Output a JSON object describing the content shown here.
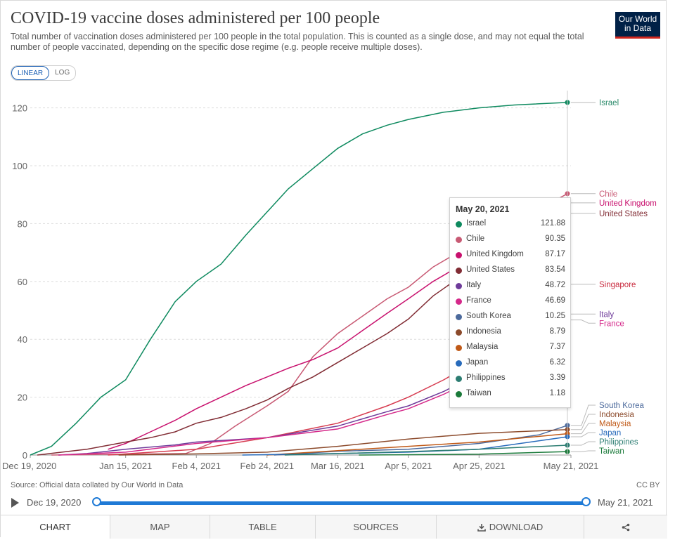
{
  "header": {
    "title": "COVID-19 vaccine doses administered per 100 people",
    "subtitle": "Total number of vaccination doses administered per 100 people in the total population. This is counted as a single dose, and may not equal the total number of people vaccinated, depending on the specific dose regime (e.g. people receive multiple doses).",
    "logo_line1": "Our World",
    "logo_line2": "in Data"
  },
  "scale_toggle": {
    "linear": "LINEAR",
    "log": "LOG",
    "selected": "LINEAR"
  },
  "tooltip": {
    "date": "May 20, 2021",
    "rows": [
      {
        "name": "Israel",
        "value": "121.88",
        "color": "#0e8a5f"
      },
      {
        "name": "Chile",
        "value": "90.35",
        "color": "#c85a74"
      },
      {
        "name": "United Kingdom",
        "value": "87.17",
        "color": "#c8116e"
      },
      {
        "name": "United States",
        "value": "83.54",
        "color": "#812c34"
      },
      {
        "name": "Italy",
        "value": "48.72",
        "color": "#6e3b9a"
      },
      {
        "name": "France",
        "value": "46.69",
        "color": "#d5298a"
      },
      {
        "name": "South Korea",
        "value": "10.25",
        "color": "#4c6a9c"
      },
      {
        "name": "Indonesia",
        "value": "8.79",
        "color": "#8c4b2c"
      },
      {
        "name": "Malaysia",
        "value": "7.37",
        "color": "#c05917"
      },
      {
        "name": "Japan",
        "value": "6.32",
        "color": "#286bbb"
      },
      {
        "name": "Philippines",
        "value": "3.39",
        "color": "#2c7d72"
      },
      {
        "name": "Taiwan",
        "value": "1.18",
        "color": "#1a7a3a"
      }
    ]
  },
  "chart_data": {
    "type": "line",
    "title": "COVID-19 vaccine doses administered per 100 people",
    "ylim": [
      0,
      125
    ],
    "yticks": [
      0,
      20,
      40,
      60,
      80,
      100,
      120
    ],
    "x_domain": [
      "Dec 19, 2020",
      "May 21, 2021"
    ],
    "xticks": [
      "Dec 19, 2020",
      "Jan 15, 2021",
      "Feb 4, 2021",
      "Feb 24, 2021",
      "Mar 16, 2021",
      "Apr 5, 2021",
      "Apr 25, 2021",
      "May 21, 2021"
    ],
    "grid": "horizontal",
    "legend": "end-of-line labels on right",
    "series": [
      {
        "name": "Israel",
        "color": "#0e8a5f",
        "label_color": "#2a8a6a",
        "points": [
          [
            "Dec 19, 2020",
            0
          ],
          [
            "Dec 25, 2020",
            3
          ],
          [
            "Jan 1, 2021",
            11
          ],
          [
            "Jan 8, 2021",
            20
          ],
          [
            "Jan 15, 2021",
            26
          ],
          [
            "Jan 22, 2021",
            40
          ],
          [
            "Jan 29, 2021",
            53
          ],
          [
            "Feb 4, 2021",
            60
          ],
          [
            "Feb 11, 2021",
            66
          ],
          [
            "Feb 18, 2021",
            76
          ],
          [
            "Feb 24, 2021",
            84
          ],
          [
            "Mar 2, 2021",
            92
          ],
          [
            "Mar 9, 2021",
            99
          ],
          [
            "Mar 16, 2021",
            106
          ],
          [
            "Mar 23, 2021",
            111
          ],
          [
            "Mar 30, 2021",
            114
          ],
          [
            "Apr 5, 2021",
            116
          ],
          [
            "Apr 15, 2021",
            118.5
          ],
          [
            "Apr 25, 2021",
            120
          ],
          [
            "May 5, 2021",
            121
          ],
          [
            "May 20, 2021",
            121.88
          ]
        ]
      },
      {
        "name": "Chile",
        "color": "#c85a74",
        "label_color": "#c85a74",
        "points": [
          [
            "Dec 25, 2020",
            0
          ],
          [
            "Feb 1, 2021",
            0.5
          ],
          [
            "Feb 8, 2021",
            4
          ],
          [
            "Feb 15, 2021",
            10
          ],
          [
            "Feb 24, 2021",
            17
          ],
          [
            "Mar 2, 2021",
            22
          ],
          [
            "Mar 9, 2021",
            34
          ],
          [
            "Mar 16, 2021",
            42
          ],
          [
            "Mar 23, 2021",
            48
          ],
          [
            "Mar 30, 2021",
            54
          ],
          [
            "Apr 5, 2021",
            58
          ],
          [
            "Apr 12, 2021",
            65
          ],
          [
            "Apr 19, 2021",
            70
          ],
          [
            "Apr 25, 2021",
            74
          ],
          [
            "May 2, 2021",
            78
          ],
          [
            "May 9, 2021",
            83
          ],
          [
            "May 20, 2021",
            90.35
          ]
        ]
      },
      {
        "name": "United Kingdom",
        "color": "#c8116e",
        "label_color": "#c8116e",
        "points": [
          [
            "Jan 10, 2021",
            2
          ],
          [
            "Jan 15, 2021",
            4
          ],
          [
            "Jan 22, 2021",
            8
          ],
          [
            "Jan 29, 2021",
            12
          ],
          [
            "Feb 4, 2021",
            16
          ],
          [
            "Feb 11, 2021",
            20
          ],
          [
            "Feb 18, 2021",
            24
          ],
          [
            "Feb 24, 2021",
            27
          ],
          [
            "Mar 2, 2021",
            30
          ],
          [
            "Mar 9, 2021",
            33
          ],
          [
            "Mar 16, 2021",
            37
          ],
          [
            "Mar 23, 2021",
            43
          ],
          [
            "Mar 30, 2021",
            49
          ],
          [
            "Apr 5, 2021",
            54
          ],
          [
            "Apr 12, 2021",
            60
          ],
          [
            "Apr 19, 2021",
            65
          ],
          [
            "Apr 25, 2021",
            70
          ],
          [
            "May 2, 2021",
            75
          ],
          [
            "May 9, 2021",
            80
          ],
          [
            "May 20, 2021",
            87.17
          ]
        ]
      },
      {
        "name": "United States",
        "color": "#812c34",
        "label_color": "#812c34",
        "points": [
          [
            "Dec 21, 2020",
            0
          ],
          [
            "Dec 28, 2020",
            1
          ],
          [
            "Jan 4, 2021",
            2
          ],
          [
            "Jan 15, 2021",
            4.5
          ],
          [
            "Jan 22, 2021",
            6
          ],
          [
            "Jan 29, 2021",
            8
          ],
          [
            "Feb 4, 2021",
            11
          ],
          [
            "Feb 11, 2021",
            13
          ],
          [
            "Feb 18, 2021",
            16
          ],
          [
            "Feb 24, 2021",
            19
          ],
          [
            "Mar 2, 2021",
            23
          ],
          [
            "Mar 9, 2021",
            27
          ],
          [
            "Mar 16, 2021",
            32
          ],
          [
            "Mar 23, 2021",
            37
          ],
          [
            "Mar 30, 2021",
            42
          ],
          [
            "Apr 5, 2021",
            47
          ],
          [
            "Apr 12, 2021",
            55
          ],
          [
            "Apr 19, 2021",
            61
          ],
          [
            "Apr 25, 2021",
            66
          ],
          [
            "May 2, 2021",
            72
          ],
          [
            "May 9, 2021",
            77
          ],
          [
            "May 20, 2021",
            83.54
          ]
        ]
      },
      {
        "name": "Singapore",
        "color": "#d73c50",
        "label_color": "#c8283c",
        "points": [
          [
            "Jan 10, 2021",
            0
          ],
          [
            "Feb 4, 2021",
            2
          ],
          [
            "Feb 24, 2021",
            6
          ],
          [
            "Mar 16, 2021",
            11
          ],
          [
            "Mar 30, 2021",
            17
          ],
          [
            "Apr 5, 2021",
            20
          ],
          [
            "Apr 15, 2021",
            26
          ],
          [
            "Apr 25, 2021",
            33
          ],
          [
            "May 5, 2021",
            42
          ],
          [
            "May 12, 2021",
            50
          ],
          [
            "May 20, 2021",
            59
          ]
        ]
      },
      {
        "name": "Italy",
        "color": "#6e3b9a",
        "label_color": "#6e3b9a",
        "points": [
          [
            "Dec 27, 2020",
            0
          ],
          [
            "Jan 4, 2021",
            0.5
          ],
          [
            "Jan 15, 2021",
            2
          ],
          [
            "Jan 29, 2021",
            3.5
          ],
          [
            "Feb 4, 2021",
            4.5
          ],
          [
            "Feb 24, 2021",
            6
          ],
          [
            "Mar 16, 2021",
            10
          ],
          [
            "Mar 30, 2021",
            15
          ],
          [
            "Apr 5, 2021",
            17
          ],
          [
            "Apr 15, 2021",
            22
          ],
          [
            "Apr 25, 2021",
            28
          ],
          [
            "May 5, 2021",
            35
          ],
          [
            "May 12, 2021",
            41
          ],
          [
            "May 20, 2021",
            48.72
          ]
        ]
      },
      {
        "name": "France",
        "color": "#d5298a",
        "label_color": "#d5298a",
        "points": [
          [
            "Dec 27, 2020",
            0
          ],
          [
            "Jan 15, 2021",
            1
          ],
          [
            "Feb 4, 2021",
            4
          ],
          [
            "Feb 24, 2021",
            6
          ],
          [
            "Mar 16, 2021",
            9
          ],
          [
            "Mar 30, 2021",
            14
          ],
          [
            "Apr 5, 2021",
            16
          ],
          [
            "Apr 15, 2021",
            21
          ],
          [
            "Apr 25, 2021",
            27
          ],
          [
            "May 5, 2021",
            34
          ],
          [
            "May 12, 2021",
            40
          ],
          [
            "May 20, 2021",
            46.69
          ]
        ]
      },
      {
        "name": "Taiwan",
        "color": "#1a7a3a",
        "label_color": "#1a7a3a",
        "points": [
          [
            "Mar 22, 2021",
            0
          ],
          [
            "Apr 25, 2021",
            0.3
          ],
          [
            "May 20, 2021",
            1.18
          ]
        ]
      },
      {
        "name": "South Korea",
        "color": "#4c6a9c",
        "label_color": "#4c6a9c",
        "points": [
          [
            "Feb 26, 2021",
            0
          ],
          [
            "Mar 16, 2021",
            1.3
          ],
          [
            "Apr 5, 2021",
            2
          ],
          [
            "Apr 25, 2021",
            4
          ],
          [
            "May 12, 2021",
            7
          ],
          [
            "May 20, 2021",
            10.25
          ]
        ]
      },
      {
        "name": "Indonesia",
        "color": "#8c4b2c",
        "label_color": "#8c4b2c",
        "points": [
          [
            "Jan 13, 2021",
            0
          ],
          [
            "Feb 4, 2021",
            0.4
          ],
          [
            "Feb 24, 2021",
            1
          ],
          [
            "Mar 16, 2021",
            3
          ],
          [
            "Apr 5, 2021",
            5.5
          ],
          [
            "Apr 25, 2021",
            7.5
          ],
          [
            "May 20, 2021",
            8.79
          ]
        ]
      },
      {
        "name": "Malaysia",
        "color": "#c05917",
        "label_color": "#c05917",
        "points": [
          [
            "Feb 24, 2021",
            0
          ],
          [
            "Mar 16, 2021",
            1.5
          ],
          [
            "Apr 5, 2021",
            3
          ],
          [
            "Apr 25, 2021",
            4.5
          ],
          [
            "May 20, 2021",
            7.37
          ]
        ]
      },
      {
        "name": "Japan",
        "color": "#286bbb",
        "label_color": "#286bbb",
        "points": [
          [
            "Feb 17, 2021",
            0
          ],
          [
            "Mar 16, 2021",
            0.5
          ],
          [
            "Apr 5, 2021",
            1
          ],
          [
            "Apr 25, 2021",
            2
          ],
          [
            "May 20, 2021",
            6.32
          ]
        ]
      },
      {
        "name": "Philippines",
        "color": "#2c7d72",
        "label_color": "#2c7d72",
        "points": [
          [
            "Mar 1, 2021",
            0
          ],
          [
            "Mar 16, 2021",
            0.5
          ],
          [
            "Apr 5, 2021",
            1.2
          ],
          [
            "Apr 25, 2021",
            2
          ],
          [
            "May 20, 2021",
            3.39
          ]
        ]
      }
    ]
  },
  "footer": {
    "source": "Source: Official data collated by Our World in Data",
    "license": "CC BY",
    "timeline_start": "Dec 19, 2020",
    "timeline_end": "May 21, 2021"
  },
  "tabs": [
    {
      "label": "CHART",
      "active": true
    },
    {
      "label": "MAP"
    },
    {
      "label": "TABLE"
    },
    {
      "label": "SOURCES"
    },
    {
      "label": "DOWNLOAD",
      "icon": "download-icon"
    },
    {
      "label": "",
      "icon": "share-icon"
    }
  ]
}
